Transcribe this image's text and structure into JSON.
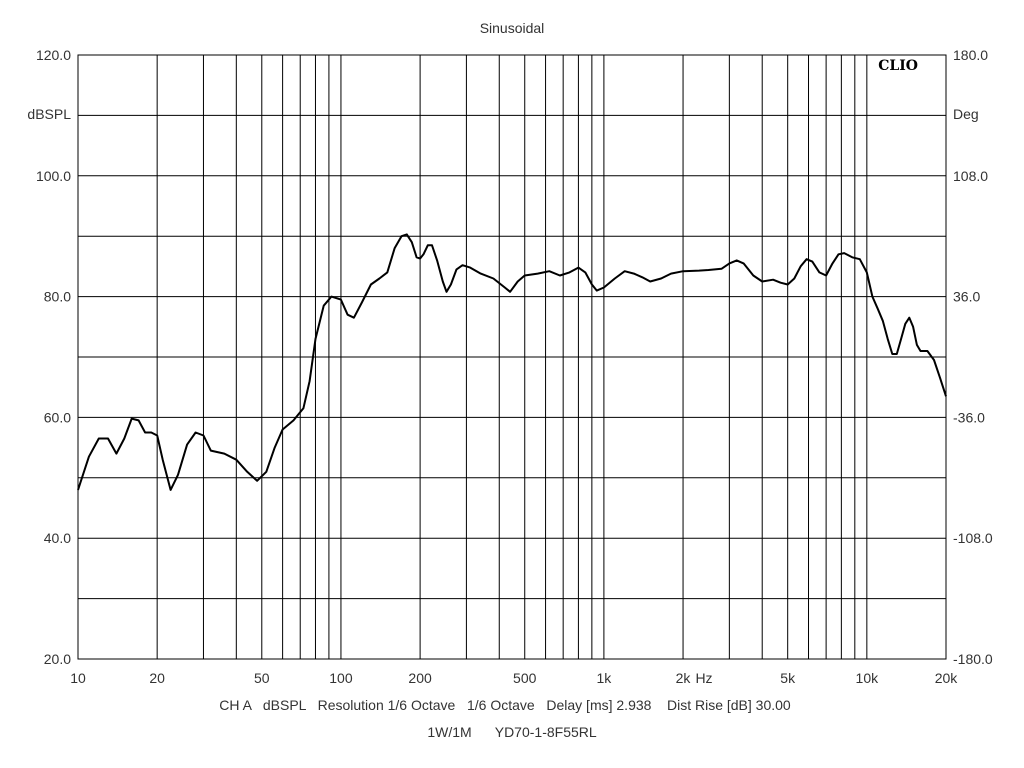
{
  "chart_data": {
    "type": "line",
    "title": "Sinusoidal",
    "brand": "CLIO",
    "x_scale": "log",
    "xlim": [
      10,
      20000
    ],
    "x_ticks": [
      10,
      20,
      50,
      100,
      200,
      500,
      1000,
      2000,
      5000,
      10000,
      20000
    ],
    "x_tick_labels": [
      "10",
      "20",
      "50",
      "100",
      "200",
      "500",
      "1k",
      "2k",
      "5k",
      "10k",
      "20k"
    ],
    "xunit": "Hz",
    "ylim": [
      20,
      120
    ],
    "y_ticks": [
      20,
      40,
      60,
      80,
      100,
      120
    ],
    "y_tick_labels": [
      "20.0",
      "40.0",
      "60.0",
      "80.0",
      "100.0",
      "120.0"
    ],
    "ylabel": "dBSPL",
    "y2lim": [
      -180,
      180
    ],
    "y2_ticks": [
      -180,
      -108,
      -36,
      36,
      108,
      180
    ],
    "y2_tick_labels": [
      "-180.0",
      "-108.0",
      "-36.0",
      "36.0",
      "108.0",
      "180.0"
    ],
    "y2label": "Deg",
    "grid": true,
    "footer_line1": "CH A   dBSPL   Resolution 1/6 Octave   1/6 Octave   Delay [ms] 2.938    Dist Rise [dB] 30.00",
    "footer_line2": "1W/1M      YD70-1-8F55RL",
    "series": [
      {
        "color": "#000000",
        "points": [
          [
            10,
            48
          ],
          [
            11,
            53.5
          ],
          [
            12,
            56.5
          ],
          [
            13,
            56.5
          ],
          [
            14,
            54
          ],
          [
            15,
            56.5
          ],
          [
            16,
            59.8
          ],
          [
            17,
            59.5
          ],
          [
            18,
            57.5
          ],
          [
            19,
            57.5
          ],
          [
            20,
            57
          ],
          [
            21,
            53
          ],
          [
            22.5,
            48
          ],
          [
            24,
            50.5
          ],
          [
            26,
            55.5
          ],
          [
            28,
            57.5
          ],
          [
            30,
            57
          ],
          [
            32,
            54.5
          ],
          [
            36,
            54
          ],
          [
            40,
            53
          ],
          [
            44,
            51
          ],
          [
            48,
            49.5
          ],
          [
            52,
            51
          ],
          [
            56,
            55
          ],
          [
            60,
            58
          ],
          [
            66,
            59.5
          ],
          [
            72,
            61.5
          ],
          [
            76,
            66
          ],
          [
            80,
            73
          ],
          [
            86,
            78.5
          ],
          [
            92,
            80
          ],
          [
            100,
            79.5
          ],
          [
            106,
            77
          ],
          [
            112,
            76.5
          ],
          [
            120,
            79
          ],
          [
            130,
            82
          ],
          [
            140,
            83
          ],
          [
            150,
            84
          ],
          [
            160,
            88
          ],
          [
            170,
            90
          ],
          [
            178,
            90.3
          ],
          [
            186,
            89
          ],
          [
            194,
            86.5
          ],
          [
            200,
            86.3
          ],
          [
            206,
            87
          ],
          [
            214,
            88.5
          ],
          [
            222,
            88.5
          ],
          [
            232,
            86
          ],
          [
            244,
            82.5
          ],
          [
            252,
            80.8
          ],
          [
            262,
            82
          ],
          [
            275,
            84.5
          ],
          [
            290,
            85.2
          ],
          [
            310,
            84.8
          ],
          [
            340,
            83.8
          ],
          [
            380,
            83
          ],
          [
            420,
            81.5
          ],
          [
            440,
            80.8
          ],
          [
            470,
            82.5
          ],
          [
            500,
            83.5
          ],
          [
            560,
            83.8
          ],
          [
            620,
            84.2
          ],
          [
            680,
            83.5
          ],
          [
            740,
            84
          ],
          [
            800,
            84.8
          ],
          [
            850,
            84
          ],
          [
            900,
            82
          ],
          [
            940,
            81
          ],
          [
            1000,
            81.5
          ],
          [
            1100,
            83
          ],
          [
            1200,
            84.2
          ],
          [
            1300,
            83.8
          ],
          [
            1400,
            83.2
          ],
          [
            1500,
            82.5
          ],
          [
            1650,
            83
          ],
          [
            1800,
            83.8
          ],
          [
            2000,
            84.2
          ],
          [
            2300,
            84.3
          ],
          [
            2500,
            84.4
          ],
          [
            2800,
            84.6
          ],
          [
            3000,
            85.5
          ],
          [
            3200,
            86
          ],
          [
            3400,
            85.5
          ],
          [
            3700,
            83.5
          ],
          [
            4000,
            82.5
          ],
          [
            4400,
            82.8
          ],
          [
            4700,
            82.3
          ],
          [
            5000,
            82
          ],
          [
            5300,
            83
          ],
          [
            5600,
            85
          ],
          [
            5900,
            86.2
          ],
          [
            6200,
            85.8
          ],
          [
            6600,
            84
          ],
          [
            7000,
            83.5
          ],
          [
            7400,
            85.5
          ],
          [
            7800,
            87
          ],
          [
            8200,
            87.2
          ],
          [
            8800,
            86.5
          ],
          [
            9400,
            86.2
          ],
          [
            10000,
            84
          ],
          [
            10500,
            80
          ],
          [
            11000,
            78
          ],
          [
            11500,
            76
          ],
          [
            12000,
            73
          ],
          [
            12500,
            70.5
          ],
          [
            13000,
            70.5
          ],
          [
            13500,
            73
          ],
          [
            14000,
            75.5
          ],
          [
            14500,
            76.5
          ],
          [
            15000,
            75
          ],
          [
            15500,
            72
          ],
          [
            16000,
            71
          ],
          [
            17000,
            71
          ],
          [
            18000,
            69.5
          ],
          [
            19000,
            66.5
          ],
          [
            20000,
            63.5
          ]
        ]
      }
    ]
  }
}
